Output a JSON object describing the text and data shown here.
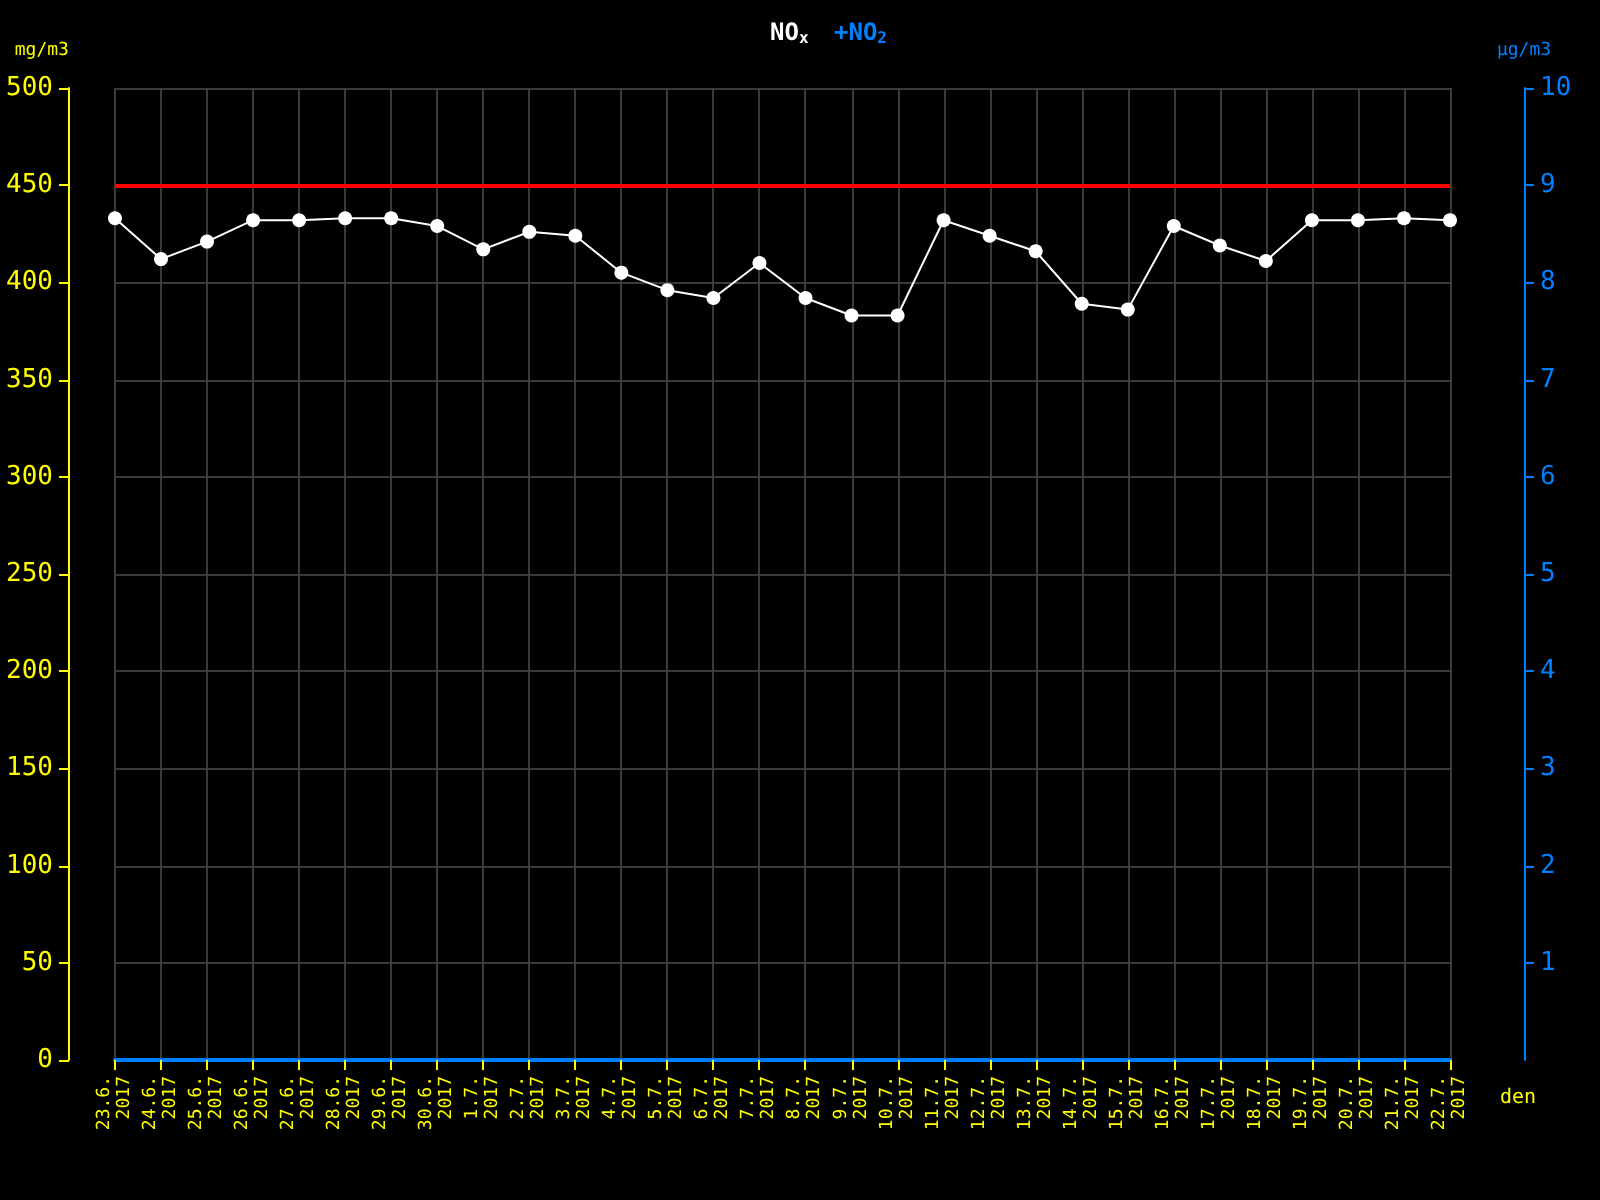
{
  "chart_data": {
    "type": "line",
    "title": "NO$_{x}$",
    "subtitle": "+NO$_{2}$",
    "xlabel": "den",
    "ylabel": "mg/m3",
    "y2label": "µg/m3",
    "categories": [
      "23.6.\n2017",
      "24.6.\n2017",
      "25.6.\n2017",
      "26.6.\n2017",
      "27.6.\n2017",
      "28.6.\n2017",
      "29.6.\n2017",
      "30.6.\n2017",
      "1.7.\n2017",
      "2.7.\n2017",
      "3.7.\n2017",
      "4.7.\n2017",
      "5.7.\n2017",
      "6.7.\n2017",
      "7.7.\n2017",
      "8.7.\n2017",
      "9.7.\n2017",
      "10.7.\n2017",
      "11.7.\n2017",
      "12.7.\n2017",
      "13.7.\n2017",
      "14.7.\n2017",
      "15.7.\n2017",
      "16.7.\n2017",
      "17.7.\n2017",
      "18.7.\n2017",
      "19.7.\n2017",
      "20.7.\n2017",
      "21.7.\n2017",
      "22.7.\n2017"
    ],
    "series": [
      {
        "color": "#ffffff",
        "values": [
          433,
          412,
          421,
          432,
          432,
          433,
          433,
          429,
          417,
          426,
          424,
          405,
          396,
          392,
          410,
          392,
          383,
          383,
          432,
          424,
          416,
          389,
          386,
          429,
          419,
          411,
          432,
          432,
          433,
          432
        ]
      }
    ],
    "ylim": [
      0,
      500
    ],
    "yticks": [
      0,
      50,
      100,
      150,
      200,
      250,
      300,
      350,
      400,
      450,
      500
    ],
    "y2lim": [
      0,
      10
    ],
    "y2ticks": [
      1,
      2,
      3,
      4,
      5,
      6,
      7,
      8,
      9,
      10
    ],
    "ref_lines": [
      {
        "axis": "y",
        "value": 450,
        "color": "#ff0000"
      }
    ],
    "grid": true,
    "marker": "circle",
    "line_style": "solid"
  }
}
